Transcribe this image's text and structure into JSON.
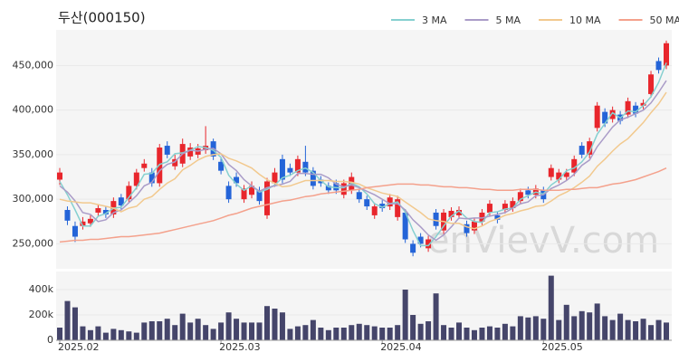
{
  "chart_data": {
    "type": "candlestick",
    "title": "두산(000150)",
    "watermark": "enVievV.com",
    "categories": [
      "2025.02",
      null,
      null,
      null,
      null,
      null,
      null,
      null,
      null,
      null,
      null,
      null,
      null,
      null,
      null,
      null,
      null,
      null,
      null,
      null,
      null,
      "2025.03",
      null,
      null,
      null,
      null,
      null,
      null,
      null,
      null,
      null,
      null,
      null,
      null,
      null,
      null,
      null,
      null,
      null,
      null,
      null,
      null,
      "2025.04",
      null,
      null,
      null,
      null,
      null,
      null,
      null,
      null,
      null,
      null,
      null,
      null,
      null,
      null,
      null,
      null,
      null,
      null,
      null,
      null,
      "2025.05",
      null,
      null,
      null,
      null,
      null,
      null,
      null,
      null,
      null,
      null,
      null,
      null,
      null,
      null,
      null,
      null
    ],
    "open": [
      322000,
      288000,
      270000,
      270000,
      273000,
      285000,
      288000,
      283000,
      302000,
      300000,
      315000,
      335000,
      330000,
      318000,
      360000,
      337000,
      340000,
      348000,
      350000,
      355000,
      365000,
      342000,
      315000,
      325000,
      300000,
      305000,
      310000,
      282000,
      318000,
      345000,
      335000,
      330000,
      342000,
      332000,
      322000,
      315000,
      318000,
      305000,
      310000,
      308000,
      300000,
      282000,
      295000,
      292000,
      280000,
      285000,
      250000,
      258000,
      245000,
      285000,
      265000,
      280000,
      282000,
      272000,
      265000,
      275000,
      285000,
      282000,
      288000,
      290000,
      298000,
      310000,
      305000,
      310000,
      325000,
      322000,
      325000,
      330000,
      360000,
      350000,
      380000,
      398000,
      390000,
      395000,
      395000,
      405000,
      405000,
      418000,
      455000,
      450000
    ],
    "high": [
      335000,
      292000,
      275000,
      280000,
      282000,
      294000,
      292000,
      302000,
      306000,
      320000,
      334000,
      345000,
      335000,
      362000,
      365000,
      350000,
      368000,
      363000,
      362000,
      382000,
      368000,
      346000,
      320000,
      330000,
      316000,
      320000,
      314000,
      324000,
      335000,
      350000,
      340000,
      349000,
      360000,
      336000,
      326000,
      319000,
      322000,
      322000,
      330000,
      312000,
      304000,
      296000,
      299000,
      306000,
      304000,
      289000,
      254000,
      262000,
      259000,
      289000,
      289000,
      291000,
      292000,
      276000,
      279000,
      289000,
      299000,
      286000,
      299000,
      302000,
      312000,
      314000,
      316000,
      314000,
      339000,
      334000,
      334000,
      349000,
      364000,
      369000,
      409000,
      402000,
      404000,
      399000,
      414000,
      409000,
      412000,
      444000,
      459000,
      478000
    ],
    "low": [
      316000,
      271000,
      252000,
      266000,
      269000,
      281000,
      279000,
      279000,
      289000,
      296000,
      311000,
      331000,
      314000,
      314000,
      346000,
      333000,
      336000,
      344000,
      346000,
      351000,
      344000,
      328000,
      296000,
      314000,
      296000,
      301000,
      294000,
      278000,
      314000,
      318000,
      326000,
      326000,
      326000,
      311000,
      314000,
      306000,
      306000,
      301000,
      306000,
      296000,
      288000,
      278000,
      286000,
      288000,
      276000,
      251000,
      236000,
      246000,
      241000,
      266000,
      261000,
      276000,
      278000,
      258000,
      261000,
      271000,
      281000,
      273000,
      284000,
      286000,
      294000,
      301000,
      301000,
      296000,
      321000,
      318000,
      321000,
      326000,
      346000,
      346000,
      376000,
      381000,
      386000,
      384000,
      391000,
      392000,
      401000,
      414000,
      441000,
      446000
    ],
    "close": [
      330000,
      276000,
      258000,
      275000,
      278000,
      290000,
      283000,
      298000,
      293000,
      315000,
      330000,
      340000,
      318000,
      358000,
      350000,
      345000,
      362000,
      358000,
      357000,
      360000,
      348000,
      332000,
      300000,
      318000,
      312000,
      315000,
      298000,
      320000,
      330000,
      322000,
      330000,
      345000,
      330000,
      315000,
      318000,
      310000,
      310000,
      318000,
      325000,
      300000,
      292000,
      292000,
      290000,
      302000,
      300000,
      255000,
      240000,
      250000,
      255000,
      270000,
      285000,
      287000,
      288000,
      262000,
      275000,
      285000,
      295000,
      277000,
      295000,
      298000,
      308000,
      305000,
      312000,
      300000,
      335000,
      330000,
      330000,
      345000,
      350000,
      365000,
      405000,
      385000,
      400000,
      388000,
      410000,
      396000,
      408000,
      440000,
      445000,
      475000
    ],
    "up_color": "#e8262c",
    "down_color": "#2464d8",
    "ylim": [
      222000,
      490000
    ],
    "yticks": [
      {
        "value": 250000,
        "label": "250,000"
      },
      {
        "value": 300000,
        "label": "300,000"
      },
      {
        "value": 350000,
        "label": "350,000"
      },
      {
        "value": 400000,
        "label": "400,000"
      },
      {
        "value": 450000,
        "label": "450,000"
      }
    ],
    "series": [
      {
        "name": "3 MA",
        "color": "#86d0d0",
        "values": [
          320000,
          305000,
          288000,
          270000,
          270000,
          281000,
          284000,
          290000,
          291000,
          302000,
          313000,
          328000,
          329000,
          339000,
          342000,
          351000,
          352000,
          355000,
          359000,
          358000,
          355000,
          347000,
          327000,
          317000,
          310000,
          315000,
          308000,
          311000,
          316000,
          324000,
          327000,
          332000,
          335000,
          330000,
          321000,
          314000,
          313000,
          313000,
          318000,
          314000,
          306000,
          295000,
          291000,
          295000,
          297000,
          286000,
          265000,
          248000,
          248000,
          258000,
          270000,
          281000,
          287000,
          279000,
          275000,
          274000,
          285000,
          286000,
          289000,
          290000,
          300000,
          304000,
          308000,
          306000,
          316000,
          322000,
          332000,
          335000,
          342000,
          353000,
          373000,
          385000,
          397000,
          391000,
          399000,
          398000,
          405000,
          415000,
          431000,
          453000
        ]
      },
      {
        "name": "5 MA",
        "color": "#aa9cc8",
        "values": [
          315000,
          308000,
          298000,
          285000,
          283000,
          275000,
          277000,
          285000,
          288000,
          296000,
          304000,
          315000,
          319000,
          332000,
          339000,
          342000,
          351000,
          355000,
          354000,
          356000,
          357000,
          351000,
          339000,
          332000,
          322000,
          315000,
          309000,
          313000,
          315000,
          317000,
          320000,
          329000,
          329000,
          328000,
          328000,
          324000,
          317000,
          314000,
          316000,
          313000,
          309000,
          305000,
          300000,
          295000,
          295000,
          288000,
          277000,
          269000,
          260000,
          254000,
          260000,
          269000,
          279000,
          278000,
          279000,
          279000,
          281000,
          283000,
          285000,
          290000,
          295000,
          297000,
          304000,
          305000,
          312000,
          316000,
          321000,
          328000,
          338000,
          344000,
          359000,
          370000,
          381000,
          389000,
          392000,
          396000,
          400000,
          408000,
          420000,
          433000
        ]
      },
      {
        "name": "10 MA",
        "color": "#f2c98e",
        "values": [
          300000,
          298000,
          297000,
          296000,
          296000,
          294000,
          292000,
          290000,
          286000,
          290000,
          292000,
          300000,
          303000,
          311000,
          318000,
          323000,
          333000,
          338000,
          344000,
          348000,
          350000,
          351000,
          346000,
          343000,
          339000,
          335000,
          328000,
          322000,
          318000,
          314000,
          315000,
          318000,
          321000,
          321000,
          321000,
          321000,
          320000,
          320000,
          319000,
          317000,
          313000,
          310000,
          307000,
          305000,
          303000,
          297000,
          291000,
          285000,
          278000,
          276000,
          275000,
          273000,
          273000,
          269000,
          267000,
          270000,
          275000,
          278000,
          282000,
          284000,
          287000,
          289000,
          292000,
          293000,
          298000,
          304000,
          308000,
          313000,
          319000,
          326000,
          337000,
          345000,
          354000,
          362000,
          368000,
          377000,
          386000,
          397000,
          407000,
          420000
        ]
      },
      {
        "name": "50 MA",
        "color": "#f4a18c",
        "values": [
          252000,
          253000,
          254000,
          254000,
          255000,
          255000,
          256000,
          257000,
          258000,
          258000,
          259000,
          260000,
          261000,
          262000,
          264000,
          266000,
          268000,
          270000,
          272000,
          274000,
          276000,
          279000,
          282000,
          284000,
          287000,
          290000,
          292000,
          294000,
          296000,
          298000,
          299000,
          301000,
          303000,
          304000,
          306000,
          307000,
          308000,
          309000,
          310000,
          311000,
          313000,
          314000,
          315000,
          316000,
          317000,
          317000,
          317000,
          316000,
          316000,
          315000,
          314000,
          314000,
          313000,
          313000,
          312000,
          311000,
          311000,
          310000,
          310000,
          310000,
          311000,
          311000,
          311000,
          310000,
          310000,
          310000,
          311000,
          311000,
          312000,
          313000,
          313000,
          315000,
          317000,
          318000,
          320000,
          322000,
          325000,
          328000,
          331000,
          335000
        ]
      }
    ],
    "volume": {
      "color": "#45456a",
      "ylim": [
        0,
        543000
      ],
      "yticks": [
        0,
        {
          "value": 200000,
          "label": "200k"
        },
        {
          "value": 400000,
          "label": "400k"
        }
      ],
      "values": [
        100000,
        310000,
        260000,
        110000,
        80000,
        110000,
        60000,
        90000,
        80000,
        70000,
        60000,
        140000,
        150000,
        150000,
        170000,
        120000,
        210000,
        140000,
        170000,
        120000,
        90000,
        140000,
        220000,
        170000,
        140000,
        140000,
        140000,
        270000,
        250000,
        220000,
        90000,
        110000,
        120000,
        160000,
        100000,
        80000,
        100000,
        100000,
        120000,
        130000,
        120000,
        110000,
        100000,
        100000,
        120000,
        400000,
        200000,
        130000,
        150000,
        370000,
        120000,
        100000,
        140000,
        100000,
        80000,
        100000,
        110000,
        100000,
        130000,
        110000,
        190000,
        180000,
        190000,
        170000,
        510000,
        160000,
        280000,
        190000,
        230000,
        220000,
        290000,
        190000,
        160000,
        210000,
        160000,
        150000,
        170000,
        120000,
        160000,
        140000
      ]
    }
  }
}
